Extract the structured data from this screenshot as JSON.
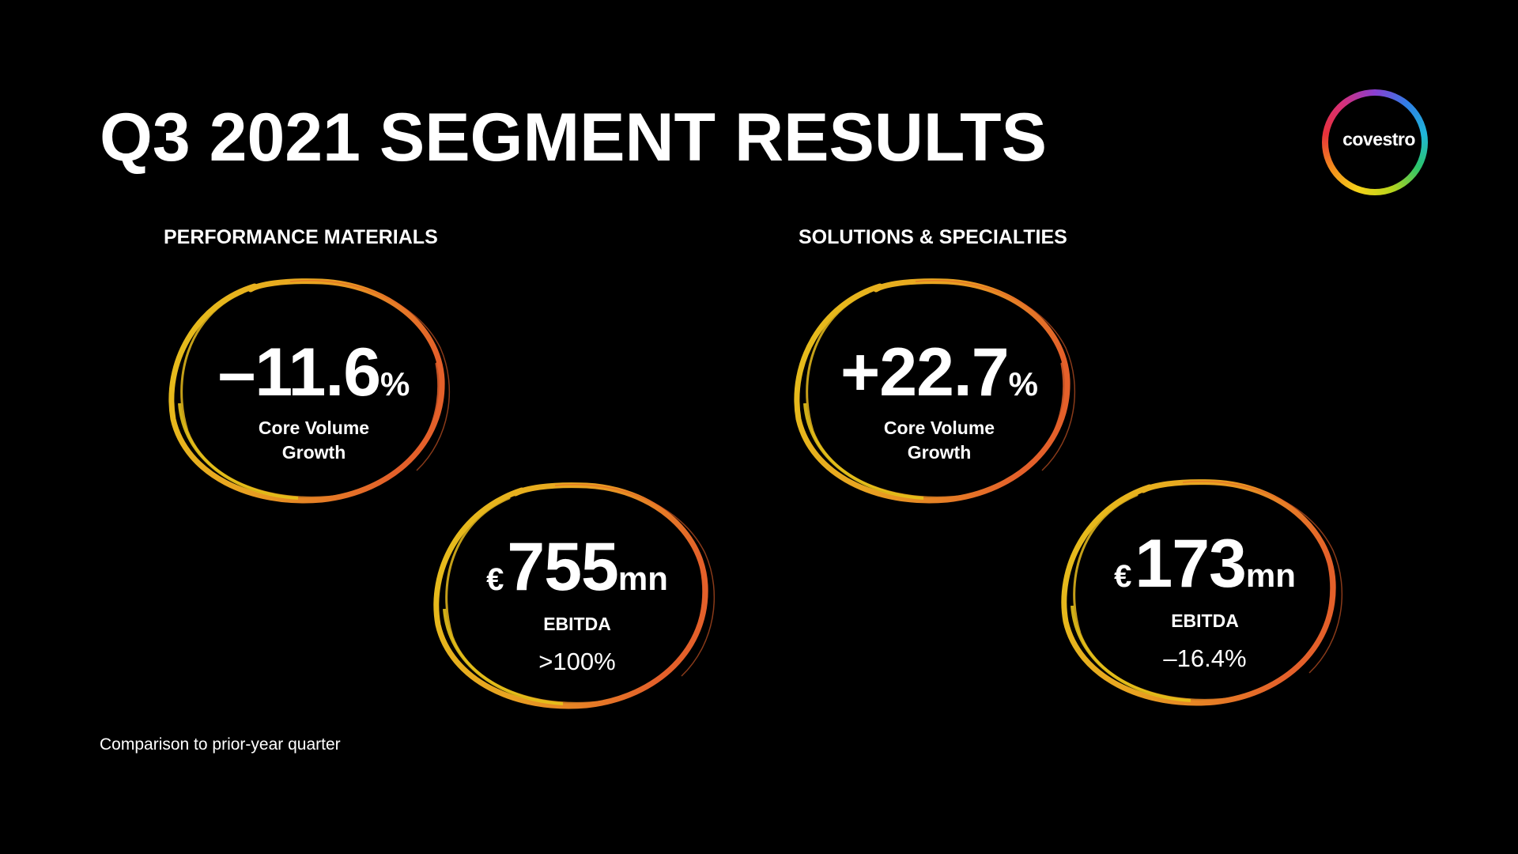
{
  "slide": {
    "title": "Q3 2021 SEGMENT RESULTS",
    "footnote": "Comparison to prior-year quarter",
    "logo": {
      "text": "covestro",
      "icon": "covestro-ring-logo"
    },
    "colors": {
      "background": "#000000",
      "text": "#ffffff",
      "circle_start": "#e6c21a",
      "circle_end": "#e4602a"
    }
  },
  "segments": [
    {
      "name": "PERFORMANCE MATERIALS",
      "volume": {
        "value": "–11.6",
        "unit": "%",
        "label_line1": "Core Volume",
        "label_line2": "Growth"
      },
      "ebitda": {
        "currency": "€",
        "value": "755",
        "unit": "mn",
        "label": "EBITDA",
        "change": ">100%"
      }
    },
    {
      "name": "SOLUTIONS & SPECIALTIES",
      "volume": {
        "value": "+22.7",
        "unit": "%",
        "label_line1": "Core Volume",
        "label_line2": "Growth"
      },
      "ebitda": {
        "currency": "€",
        "value": "173",
        "unit": "mn",
        "label": "EBITDA",
        "change": "–16.4%"
      }
    }
  ]
}
